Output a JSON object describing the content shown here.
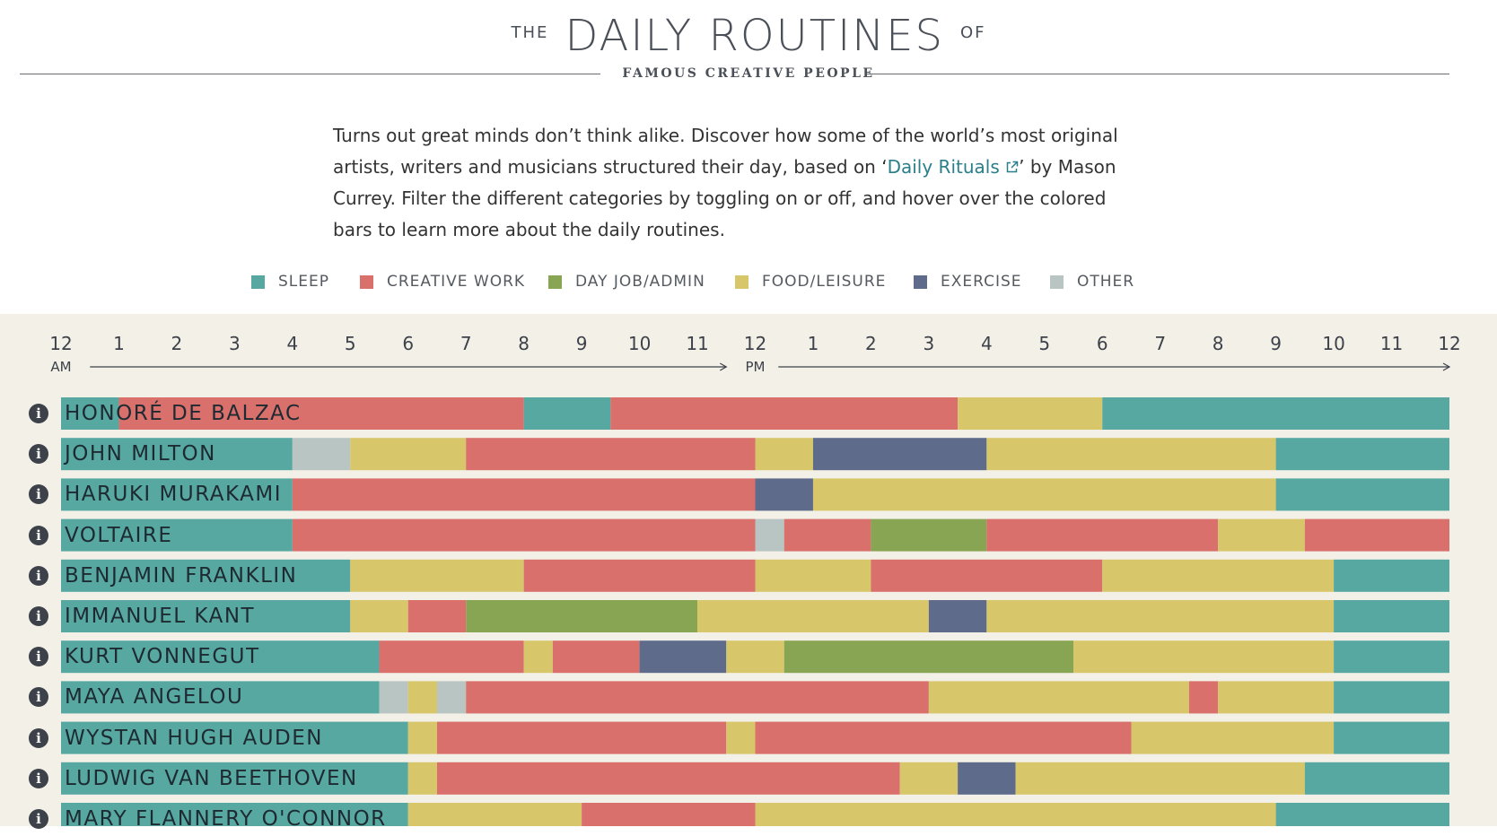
{
  "header": {
    "title_prefix": "THE",
    "title_main": "DAILY ROUTINES",
    "title_suffix": "OF",
    "subtitle": "FAMOUS CREATIVE PEOPLE"
  },
  "intro": {
    "text_before": "Turns out great minds don’t think alike. Discover how some of the world’s most original artists, writers and musicians structured their day, based on ‘",
    "link_text": "Daily Rituals",
    "text_after": "’ by Mason Currey. Filter the different categories by toggling on or off, and hover over the colored bars to learn more about the daily routines."
  },
  "colors": {
    "sleep": "#58a8a2",
    "creative": "#d9706c",
    "dayjob": "#88a553",
    "food": "#d7c66a",
    "exercise": "#5f6b8b",
    "other": "#b8c5c3"
  },
  "chart_data": {
    "type": "bar",
    "orientation": "horizontal-stacked-timeline",
    "x_unit": "hour of day",
    "xlim": [
      0,
      24
    ],
    "am_label": "AM",
    "pm_label": "PM",
    "ticks": [
      {
        "hour": 0,
        "label": "12"
      },
      {
        "hour": 1,
        "label": "1"
      },
      {
        "hour": 2,
        "label": "2"
      },
      {
        "hour": 3,
        "label": "3"
      },
      {
        "hour": 4,
        "label": "4"
      },
      {
        "hour": 5,
        "label": "5"
      },
      {
        "hour": 6,
        "label": "6"
      },
      {
        "hour": 7,
        "label": "7"
      },
      {
        "hour": 8,
        "label": "8"
      },
      {
        "hour": 9,
        "label": "9"
      },
      {
        "hour": 10,
        "label": "10"
      },
      {
        "hour": 11,
        "label": "11"
      },
      {
        "hour": 12,
        "label": "12"
      },
      {
        "hour": 13,
        "label": "1"
      },
      {
        "hour": 14,
        "label": "2"
      },
      {
        "hour": 15,
        "label": "3"
      },
      {
        "hour": 16,
        "label": "4"
      },
      {
        "hour": 17,
        "label": "5"
      },
      {
        "hour": 18,
        "label": "6"
      },
      {
        "hour": 19,
        "label": "7"
      },
      {
        "hour": 20,
        "label": "8"
      },
      {
        "hour": 21,
        "label": "9"
      },
      {
        "hour": 22,
        "label": "10"
      },
      {
        "hour": 23,
        "label": "11"
      },
      {
        "hour": 24,
        "label": "12"
      }
    ],
    "legend": [
      {
        "key": "sleep",
        "label": "SLEEP"
      },
      {
        "key": "creative",
        "label": "CREATIVE WORK"
      },
      {
        "key": "dayjob",
        "label": "DAY JOB/ADMIN"
      },
      {
        "key": "food",
        "label": "FOOD/LEISURE"
      },
      {
        "key": "exercise",
        "label": "EXERCISE"
      },
      {
        "key": "other",
        "label": "OTHER"
      }
    ],
    "rows": [
      {
        "name": "HONORÉ DE BALZAC",
        "segments": [
          {
            "cat": "sleep",
            "start": 0,
            "end": 1
          },
          {
            "cat": "creative",
            "start": 1,
            "end": 8
          },
          {
            "cat": "sleep",
            "start": 8,
            "end": 9.5
          },
          {
            "cat": "creative",
            "start": 9.5,
            "end": 15.5
          },
          {
            "cat": "food",
            "start": 15.5,
            "end": 18
          },
          {
            "cat": "sleep",
            "start": 18,
            "end": 24
          }
        ]
      },
      {
        "name": "JOHN MILTON",
        "segments": [
          {
            "cat": "sleep",
            "start": 0,
            "end": 4
          },
          {
            "cat": "other",
            "start": 4,
            "end": 5
          },
          {
            "cat": "food",
            "start": 5,
            "end": 7
          },
          {
            "cat": "creative",
            "start": 7,
            "end": 12
          },
          {
            "cat": "food",
            "start": 12,
            "end": 13
          },
          {
            "cat": "exercise",
            "start": 13,
            "end": 16
          },
          {
            "cat": "food",
            "start": 16,
            "end": 21
          },
          {
            "cat": "sleep",
            "start": 21,
            "end": 24
          }
        ]
      },
      {
        "name": "HARUKI MURAKAMI",
        "segments": [
          {
            "cat": "sleep",
            "start": 0,
            "end": 4
          },
          {
            "cat": "creative",
            "start": 4,
            "end": 12
          },
          {
            "cat": "exercise",
            "start": 12,
            "end": 13
          },
          {
            "cat": "food",
            "start": 13,
            "end": 21
          },
          {
            "cat": "sleep",
            "start": 21,
            "end": 24
          }
        ]
      },
      {
        "name": "VOLTAIRE",
        "segments": [
          {
            "cat": "sleep",
            "start": 0,
            "end": 4
          },
          {
            "cat": "creative",
            "start": 4,
            "end": 12
          },
          {
            "cat": "other",
            "start": 12,
            "end": 12.5
          },
          {
            "cat": "creative",
            "start": 12.5,
            "end": 14
          },
          {
            "cat": "dayjob",
            "start": 14,
            "end": 16
          },
          {
            "cat": "creative",
            "start": 16,
            "end": 20
          },
          {
            "cat": "food",
            "start": 20,
            "end": 21.5
          },
          {
            "cat": "creative",
            "start": 21.5,
            "end": 24
          }
        ]
      },
      {
        "name": "BENJAMIN FRANKLIN",
        "segments": [
          {
            "cat": "sleep",
            "start": 0,
            "end": 5
          },
          {
            "cat": "food",
            "start": 5,
            "end": 8
          },
          {
            "cat": "creative",
            "start": 8,
            "end": 12
          },
          {
            "cat": "food",
            "start": 12,
            "end": 14
          },
          {
            "cat": "creative",
            "start": 14,
            "end": 18
          },
          {
            "cat": "food",
            "start": 18,
            "end": 22
          },
          {
            "cat": "sleep",
            "start": 22,
            "end": 24
          }
        ]
      },
      {
        "name": "IMMANUEL KANT",
        "segments": [
          {
            "cat": "sleep",
            "start": 0,
            "end": 5
          },
          {
            "cat": "food",
            "start": 5,
            "end": 6
          },
          {
            "cat": "creative",
            "start": 6,
            "end": 7
          },
          {
            "cat": "dayjob",
            "start": 7,
            "end": 11
          },
          {
            "cat": "food",
            "start": 11,
            "end": 15
          },
          {
            "cat": "exercise",
            "start": 15,
            "end": 16
          },
          {
            "cat": "food",
            "start": 16,
            "end": 22
          },
          {
            "cat": "sleep",
            "start": 22,
            "end": 24
          }
        ]
      },
      {
        "name": "KURT VONNEGUT",
        "segments": [
          {
            "cat": "sleep",
            "start": 0,
            "end": 5.5
          },
          {
            "cat": "creative",
            "start": 5.5,
            "end": 8
          },
          {
            "cat": "food",
            "start": 8,
            "end": 8.5
          },
          {
            "cat": "creative",
            "start": 8.5,
            "end": 10
          },
          {
            "cat": "exercise",
            "start": 10,
            "end": 11.5
          },
          {
            "cat": "food",
            "start": 11.5,
            "end": 12.5
          },
          {
            "cat": "dayjob",
            "start": 12.5,
            "end": 17.5
          },
          {
            "cat": "food",
            "start": 17.5,
            "end": 22
          },
          {
            "cat": "sleep",
            "start": 22,
            "end": 24
          }
        ]
      },
      {
        "name": "MAYA ANGELOU",
        "segments": [
          {
            "cat": "sleep",
            "start": 0,
            "end": 5.5
          },
          {
            "cat": "other",
            "start": 5.5,
            "end": 6
          },
          {
            "cat": "food",
            "start": 6,
            "end": 6.5
          },
          {
            "cat": "other",
            "start": 6.5,
            "end": 7
          },
          {
            "cat": "creative",
            "start": 7,
            "end": 15
          },
          {
            "cat": "food",
            "start": 15,
            "end": 19.5
          },
          {
            "cat": "creative",
            "start": 19.5,
            "end": 20
          },
          {
            "cat": "food",
            "start": 20,
            "end": 22
          },
          {
            "cat": "sleep",
            "start": 22,
            "end": 24
          }
        ]
      },
      {
        "name": "WYSTAN HUGH AUDEN",
        "segments": [
          {
            "cat": "sleep",
            "start": 0,
            "end": 6
          },
          {
            "cat": "food",
            "start": 6,
            "end": 6.5
          },
          {
            "cat": "creative",
            "start": 6.5,
            "end": 11.5
          },
          {
            "cat": "food",
            "start": 11.5,
            "end": 12
          },
          {
            "cat": "creative",
            "start": 12,
            "end": 18.5
          },
          {
            "cat": "food",
            "start": 18.5,
            "end": 22
          },
          {
            "cat": "sleep",
            "start": 22,
            "end": 24
          }
        ]
      },
      {
        "name": "LUDWIG VAN BEETHOVEN",
        "segments": [
          {
            "cat": "sleep",
            "start": 0,
            "end": 6
          },
          {
            "cat": "food",
            "start": 6,
            "end": 6.5
          },
          {
            "cat": "creative",
            "start": 6.5,
            "end": 14.5
          },
          {
            "cat": "food",
            "start": 14.5,
            "end": 15.5
          },
          {
            "cat": "exercise",
            "start": 15.5,
            "end": 16.5
          },
          {
            "cat": "food",
            "start": 16.5,
            "end": 21.5
          },
          {
            "cat": "sleep",
            "start": 21.5,
            "end": 24
          }
        ]
      },
      {
        "name": "MARY FLANNERY O'CONNOR",
        "segments": [
          {
            "cat": "sleep",
            "start": 0,
            "end": 6
          },
          {
            "cat": "food",
            "start": 6,
            "end": 9
          },
          {
            "cat": "creative",
            "start": 9,
            "end": 12
          },
          {
            "cat": "food",
            "start": 12,
            "end": 21
          },
          {
            "cat": "sleep",
            "start": 21,
            "end": 24
          }
        ]
      }
    ]
  }
}
